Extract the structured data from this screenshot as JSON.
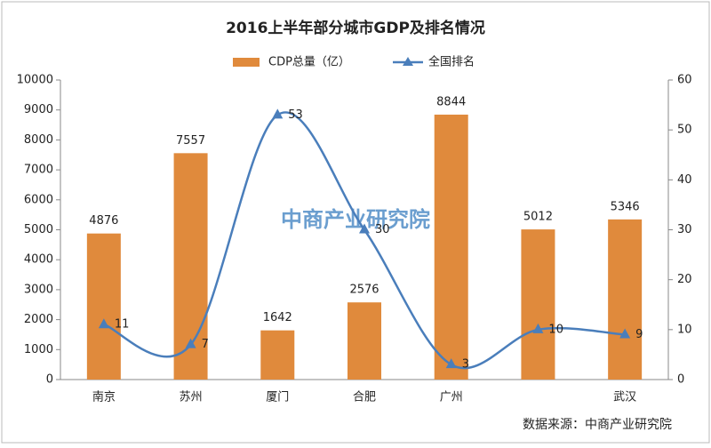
{
  "chart_data": {
    "type": "bar",
    "title": "2016上半年部分城市GDP及排名情况",
    "categories": [
      "南京",
      "苏州",
      "厦门",
      "合肥",
      "广州",
      null,
      "武汉"
    ],
    "series": [
      {
        "name": "CDP总量（亿）",
        "type": "bar",
        "color": "#e08a3c",
        "values": [
          4876,
          7557,
          1642,
          2576,
          8844,
          5012,
          5346
        ]
      },
      {
        "name": "全国排名",
        "type": "line",
        "axis": "y2",
        "color": "#4a7ebb",
        "values": [
          11,
          7,
          53,
          30,
          3,
          10,
          9
        ]
      }
    ],
    "ylim": [
      0,
      10000
    ],
    "yticks": [
      0,
      1000,
      2000,
      3000,
      4000,
      5000,
      6000,
      7000,
      8000,
      9000,
      10000
    ],
    "y2lim": [
      0,
      60
    ],
    "y2ticks": [
      0,
      10,
      20,
      30,
      40,
      50,
      60
    ],
    "legend": "top",
    "watermark": "中商产业研究院",
    "source": "数据来源：中商产业研究院"
  }
}
